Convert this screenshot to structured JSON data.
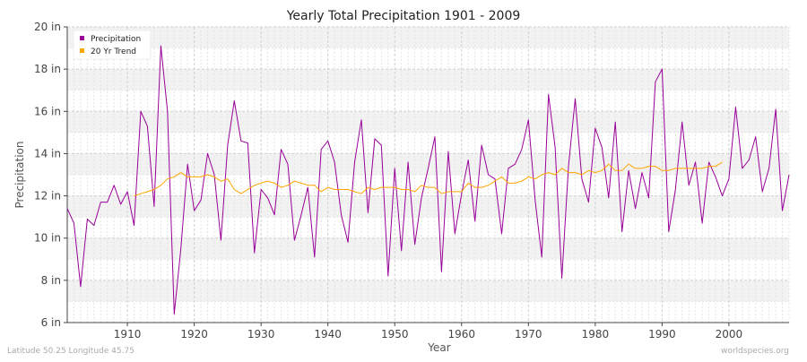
{
  "chart_data": {
    "type": "line",
    "title": "Yearly Total Precipitation 1901 - 2009",
    "xlabel": "Year",
    "ylabel": "Precipitation",
    "xlim": [
      1901,
      2009
    ],
    "ylim": [
      6,
      20
    ],
    "x_ticks": [
      1910,
      1920,
      1930,
      1940,
      1950,
      1960,
      1970,
      1980,
      1990,
      2000
    ],
    "y_ticks": [
      6,
      8,
      10,
      12,
      14,
      16,
      18,
      20
    ],
    "y_tick_labels": [
      "6 in",
      "8 in",
      "10 in",
      "12 in",
      "14 in",
      "16 in",
      "18 in",
      "20 in"
    ],
    "grid": true,
    "legend_position": "top-left",
    "series": [
      {
        "name": "Precipitation",
        "color": "#990099",
        "x_start": 1901,
        "values": [
          11.4,
          10.7,
          7.7,
          10.9,
          10.6,
          11.7,
          11.7,
          12.5,
          11.6,
          12.2,
          10.6,
          16.0,
          15.3,
          11.5,
          19.1,
          16.0,
          6.4,
          9.5,
          13.5,
          11.3,
          11.8,
          14.0,
          13.0,
          9.9,
          14.4,
          16.5,
          14.6,
          14.5,
          9.3,
          12.3,
          11.9,
          11.1,
          14.2,
          13.5,
          9.9,
          11.1,
          12.4,
          9.1,
          14.2,
          14.6,
          13.6,
          11.1,
          9.8,
          13.6,
          15.6,
          11.2,
          14.7,
          14.4,
          8.2,
          13.3,
          9.4,
          13.6,
          9.7,
          11.9,
          13.3,
          14.8,
          8.4,
          14.1,
          10.2,
          12.1,
          13.7,
          10.8,
          14.4,
          13.0,
          12.8,
          10.2,
          13.3,
          13.5,
          14.2,
          15.6,
          11.8,
          9.1,
          16.8,
          14.3,
          8.1,
          13.4,
          16.6,
          12.8,
          11.7,
          15.2,
          14.3,
          11.9,
          15.5,
          10.3,
          13.2,
          11.4,
          13.1,
          11.9,
          17.4,
          18.0,
          10.3,
          12.3,
          15.5,
          12.5,
          13.6,
          10.7,
          13.6,
          12.9,
          12.0,
          12.8,
          16.2,
          13.3,
          13.7,
          14.8,
          12.2,
          13.3,
          16.1,
          11.3,
          13.0
        ]
      },
      {
        "name": "20 Yr Trend",
        "color": "#ffa500",
        "x_start": 1911,
        "values": [
          12.0,
          12.1,
          12.2,
          12.3,
          12.5,
          12.8,
          12.9,
          13.1,
          12.9,
          12.9,
          12.9,
          13.0,
          12.9,
          12.7,
          12.8,
          12.3,
          12.1,
          12.3,
          12.5,
          12.6,
          12.7,
          12.6,
          12.4,
          12.5,
          12.7,
          12.6,
          12.5,
          12.5,
          12.2,
          12.4,
          12.3,
          12.3,
          12.3,
          12.2,
          12.1,
          12.4,
          12.3,
          12.4,
          12.4,
          12.4,
          12.3,
          12.3,
          12.2,
          12.5,
          12.4,
          12.4,
          12.1,
          12.2,
          12.2,
          12.2,
          12.6,
          12.4,
          12.4,
          12.5,
          12.7,
          12.9,
          12.6,
          12.6,
          12.7,
          12.9,
          12.8,
          13.0,
          13.1,
          13.0,
          13.3,
          13.1,
          13.1,
          13.0,
          13.2,
          13.1,
          13.2,
          13.5,
          13.2,
          13.2,
          13.5,
          13.3,
          13.3,
          13.4,
          13.4,
          13.2,
          13.2,
          13.3,
          13.3,
          13.3,
          13.3,
          13.3,
          13.4,
          13.4,
          13.6
        ]
      }
    ]
  },
  "footer": {
    "left": "Latitude 50.25 Longitude 45.75",
    "right": "worldspecies.org"
  }
}
